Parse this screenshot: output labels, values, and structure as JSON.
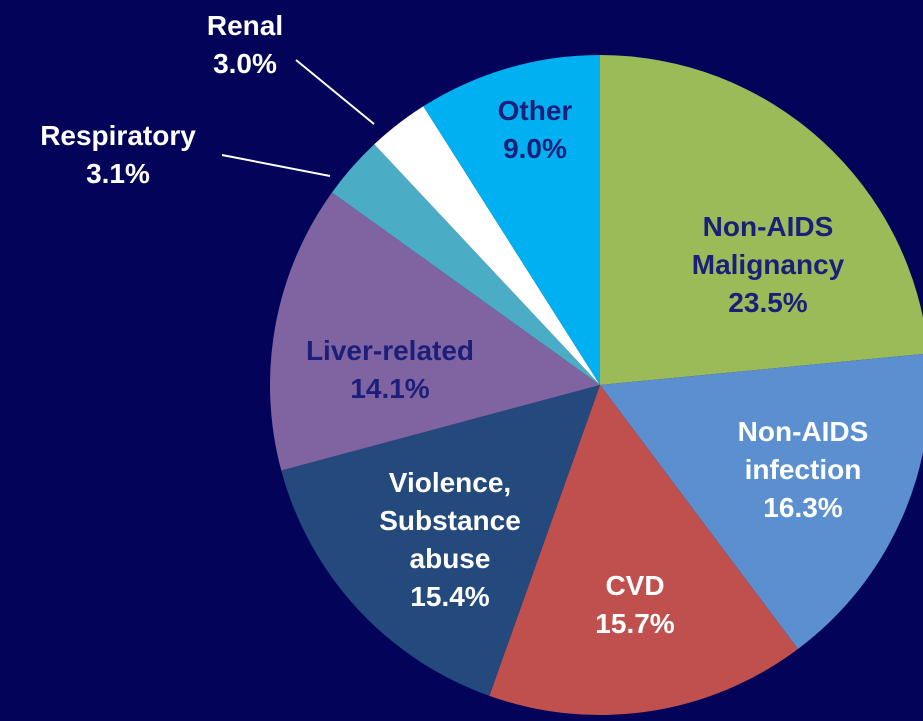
{
  "chart_data": {
    "type": "pie",
    "categories": [
      "Non-AIDS Malignancy",
      "Non-AIDS infection",
      "CVD",
      "Violence, Substance abuse",
      "Liver-related",
      "Respiratory",
      "Renal",
      "Other"
    ],
    "values": [
      23.5,
      16.3,
      15.7,
      15.4,
      14.1,
      3.1,
      3.0,
      9.0
    ],
    "value_labels": [
      "23.5%",
      "16.3%",
      "15.7%",
      "15.4%",
      "14.1%",
      "3.1%",
      "3.0%",
      "9.0%"
    ],
    "colors": [
      "#9bbb59",
      "#5b8fd0",
      "#c0504d",
      "#24497c",
      "#8064a2",
      "#4bacc6",
      "#ffffff",
      "#00b0f0"
    ]
  }
}
